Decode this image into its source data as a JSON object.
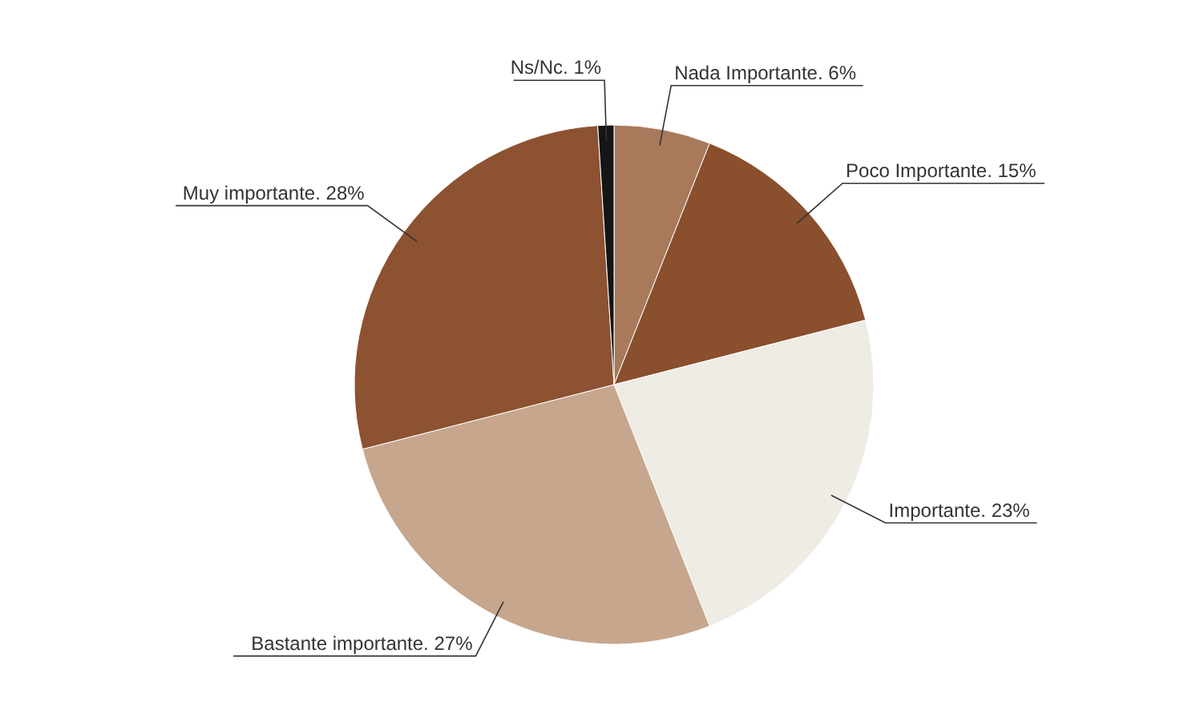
{
  "chart_data": {
    "type": "pie",
    "categories": [
      "Nada Importante.",
      "Poco Importante.",
      "Importante.",
      "Bastante importante.",
      "Muy importante.",
      "Ns/Nc."
    ],
    "values": [
      6,
      15,
      23,
      27,
      28,
      1
    ],
    "value_labels": [
      "6%",
      "15%",
      "23%",
      "27%",
      "28%",
      "1%"
    ],
    "colors": [
      "#a8795b",
      "#8a4f2d",
      "#efebe5",
      "#c6a68c",
      "#8c5232",
      "#151515"
    ]
  }
}
